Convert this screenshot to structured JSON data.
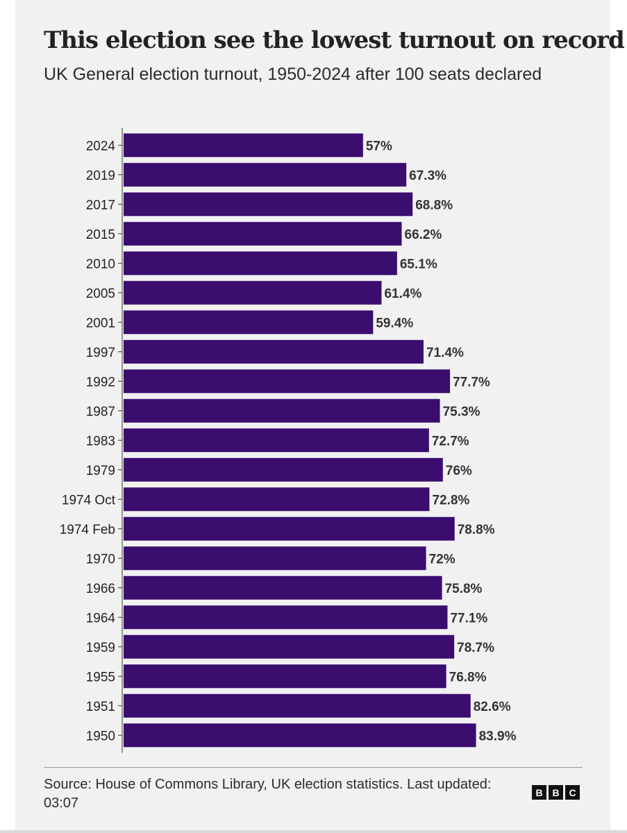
{
  "title": "This election see the lowest turnout on record",
  "subtitle": "UK General election turnout, 1950-2024 after 100 seats declared",
  "source": "Source: House of Commons Library, UK election statistics. Last updated: 03:07",
  "logo_letters": [
    "B",
    "B",
    "C"
  ],
  "colors": {
    "bar": "#3a0d6e",
    "background": "#f1f1f1"
  },
  "chart_data": {
    "type": "bar",
    "orientation": "horizontal",
    "categories": [
      "2024",
      "2019",
      "2017",
      "2015",
      "2010",
      "2005",
      "2001",
      "1997",
      "1992",
      "1987",
      "1983",
      "1979",
      "1974 Oct",
      "1974 Feb",
      "1970",
      "1966",
      "1964",
      "1959",
      "1955",
      "1951",
      "1950"
    ],
    "values": [
      57,
      67.3,
      68.8,
      66.2,
      65.1,
      61.4,
      59.4,
      71.4,
      77.7,
      75.3,
      72.7,
      76,
      72.8,
      78.8,
      72,
      75.8,
      77.1,
      78.7,
      76.8,
      82.6,
      83.9
    ],
    "data_labels": [
      "57%",
      "67.3%",
      "68.8%",
      "66.2%",
      "65.1%",
      "61.4%",
      "59.4%",
      "71.4%",
      "77.7%",
      "75.3%",
      "72.7%",
      "76%",
      "72.8%",
      "78.8%",
      "72%",
      "75.8%",
      "77.1%",
      "78.7%",
      "76.8%",
      "82.6%",
      "83.9%"
    ],
    "xlim": [
      0,
      100
    ],
    "grid": false,
    "legend": "none",
    "unit": "%"
  }
}
